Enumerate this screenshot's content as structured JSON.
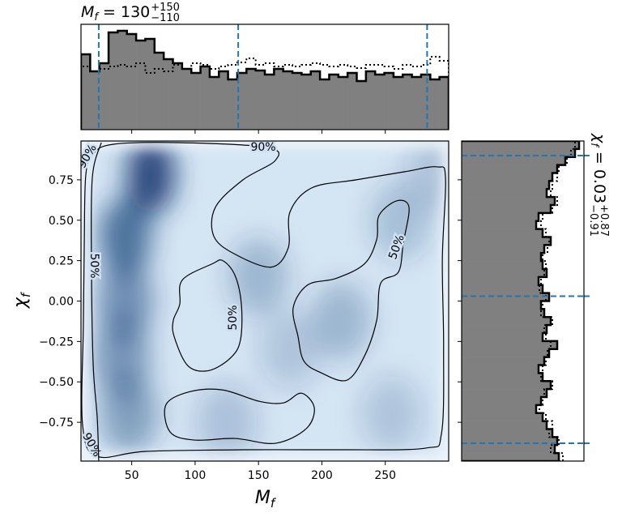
{
  "chart_data": [
    {
      "type": "histogram",
      "title": {
        "var": "M",
        "sub": "f",
        "eq": " = 130",
        "sup": "+150",
        "low": "−110"
      },
      "bins": [
        10,
        17.25,
        24.5,
        31.75,
        39,
        46.25,
        53.5,
        60.75,
        68,
        75.25,
        82.5,
        89.75,
        97,
        104.25,
        111.5,
        118.75,
        126,
        133.25,
        140.5,
        147.75,
        155,
        162.25,
        169.5,
        176.75,
        184,
        191.25,
        198.5,
        205.75,
        213,
        220.25,
        227.5,
        234.75,
        242,
        249.25,
        256.5,
        263.75,
        271,
        278.25,
        285.5,
        292.75,
        300
      ],
      "series": [
        {
          "style": "solid",
          "values": [
            93,
            72,
            82,
            120,
            122,
            118,
            110,
            112,
            95,
            87,
            82,
            75,
            70,
            78,
            65,
            72,
            62,
            70,
            75,
            73,
            68,
            75,
            72,
            70,
            68,
            72,
            62,
            68,
            65,
            70,
            60,
            72,
            68,
            70,
            65,
            68,
            65,
            68,
            62,
            65
          ]
        },
        {
          "style": "dotted",
          "values": [
            78,
            72,
            75,
            78,
            80,
            78,
            82,
            70,
            75,
            72,
            80,
            75,
            82,
            80,
            75,
            78,
            80,
            83,
            88,
            80,
            82,
            78,
            80,
            78,
            80,
            82,
            80,
            78,
            80,
            78,
            76,
            80,
            80,
            78,
            75,
            80,
            78,
            80,
            90,
            85
          ]
        }
      ],
      "color": "#808080",
      "xlim": [
        10,
        300
      ],
      "ylim": [
        0,
        130
      ],
      "xticks": [
        50,
        100,
        150,
        200,
        250
      ],
      "quantiles": [
        24,
        134,
        283
      ],
      "quantile_color": "#1f77b4"
    },
    {
      "type": "density2d",
      "xlabel": {
        "var": "M",
        "sub": "f"
      },
      "ylabel": {
        "var": "χ",
        "sub": "f"
      },
      "xlim": [
        10,
        300
      ],
      "ylim": [
        -0.99,
        0.99
      ],
      "xticks": [
        50,
        100,
        150,
        200,
        250
      ],
      "yticks": [
        {
          "value": -0.75,
          "label": "−0.75"
        },
        {
          "value": -0.5,
          "label": "−0.50"
        },
        {
          "value": -0.25,
          "label": "−0.25"
        },
        {
          "value": 0,
          "label": "0.00"
        },
        0.25,
        {
          "value": 0.5,
          "label": "0.50"
        },
        0.75
      ],
      "density": {
        "x": [
          65,
          45,
          45,
          42,
          48,
          150,
          215,
          262,
          290,
          125,
          255,
          175
        ],
        "y": [
          0.78,
          0.4,
          0.0,
          -0.35,
          -0.7,
          0.15,
          -0.12,
          0.5,
          0.8,
          -0.75,
          -0.7,
          -0.3
        ],
        "weight": [
          1,
          0.75,
          0.55,
          0.5,
          0.45,
          0.3,
          0.3,
          0.25,
          0.2,
          0.22,
          0.2,
          0.2
        ]
      },
      "colormap": [
        "#d4e5f4",
        "#08306b"
      ],
      "contours": [
        {
          "closed": true,
          "labels": [
            "90%",
            "90%",
            "90%"
          ],
          "x": [
            13.8,
            19.6,
            35.6,
            86.7,
            156.9,
            163.3,
            137.8,
            116,
            114.8,
            131.4,
            160.1,
            173.5,
            174.8,
            192,
            227.2,
            265.5,
            291,
            297.5,
            295,
            296,
            294.3,
            281.5,
            214.4,
            137.8,
            61.1,
            22.8,
            11.3,
            11.9,
            12.6
          ],
          "y": [
            0.78,
            0.91,
            0.97,
            0.98,
            0.95,
            0.87,
            0.75,
            0.58,
            0.4,
            0.29,
            0.21,
            0.33,
            0.55,
            0.7,
            0.75,
            0.8,
            0.83,
            0.76,
            0.26,
            -0.29,
            -0.82,
            -0.91,
            -0.92,
            -0.92,
            -0.93,
            -0.96,
            -0.77,
            -0.14,
            0.36
          ]
        },
        {
          "closed": false,
          "labels": [
            "50%"
          ],
          "x": [
            26,
            18.9,
            18.3,
            19.6,
            22.8,
            24
          ],
          "y": [
            0.98,
            0.76,
            0.21,
            -0.39,
            -0.72,
            -0.99
          ]
        },
        {
          "closed": true,
          "labels": [
            "50%"
          ],
          "x": [
            89.9,
            113.5,
            121.8,
            131.4,
            136.5,
            135.8,
            128.2,
            110.9,
            94.3,
            83.5,
            82.8,
            87.9
          ],
          "y": [
            0.13,
            0.23,
            0.25,
            0.16,
            -0.02,
            -0.24,
            -0.35,
            -0.43,
            -0.4,
            -0.22,
            -0.12,
            -0.02
          ]
        },
        {
          "closed": true,
          "labels": [
            "50%"
          ],
          "x": [
            245.1,
            259.1,
            268.7,
            264.2,
            260.4,
            246.4,
            243.2,
            233.6,
            219.5,
            198.4,
            185.7,
            181.2,
            177.4,
            188.9,
            211.2,
            233.6,
            243.2
          ],
          "y": [
            0.53,
            0.62,
            0.58,
            0.36,
            0.18,
            0.11,
            -0.12,
            -0.34,
            -0.49,
            -0.44,
            -0.37,
            -0.22,
            -0.04,
            0.1,
            0.14,
            0.23,
            0.38
          ]
        },
        {
          "closed": true,
          "x": [
            77.1,
            96.2,
            121.8,
            150.5,
            169.7,
            183.8,
            194,
            187.6,
            163.3,
            131.4,
            99.4,
            80.3
          ],
          "y": [
            -0.64,
            -0.56,
            -0.55,
            -0.62,
            -0.63,
            -0.57,
            -0.66,
            -0.79,
            -0.88,
            -0.85,
            -0.86,
            -0.81
          ]
        }
      ]
    },
    {
      "type": "histogram",
      "orientation": "horizontal",
      "title": {
        "var": "χ",
        "sub": "f",
        "eq": " = 0.03",
        "sup": "+0.87",
        "low": "−0.91"
      },
      "bins": [
        -0.99,
        -0.9405,
        -0.891,
        -0.8415,
        -0.792,
        -0.7425,
        -0.693,
        -0.6435,
        -0.594,
        -0.5445,
        -0.495,
        -0.4455,
        -0.396,
        -0.3465,
        -0.297,
        -0.2475,
        -0.198,
        -0.1485,
        -0.099,
        -0.0495,
        0,
        0.0495,
        0.099,
        0.1485,
        0.198,
        0.2475,
        0.297,
        0.3465,
        0.396,
        0.4455,
        0.495,
        0.5445,
        0.594,
        0.6435,
        0.693,
        0.7425,
        0.792,
        0.8415,
        0.891,
        0.9405,
        0.99
      ],
      "series": [
        {
          "style": "solid",
          "values": [
            120,
            115,
            118,
            112,
            105,
            100,
            92,
            98,
            105,
            110,
            100,
            95,
            102,
            108,
            118,
            100,
            105,
            110,
            102,
            98,
            108,
            100,
            95,
            105,
            100,
            98,
            102,
            110,
            100,
            92,
            95,
            110,
            115,
            105,
            108,
            112,
            118,
            128,
            140,
            145
          ]
        },
        {
          "style": "dotted",
          "values": [
            125,
            110,
            120,
            108,
            112,
            104,
            96,
            100,
            102,
            112,
            98,
            100,
            104,
            106,
            110,
            104,
            102,
            112,
            98,
            100,
            104,
            96,
            98,
            102,
            104,
            100,
            106,
            108,
            104,
            98,
            100,
            112,
            118,
            110,
            112,
            118,
            120,
            130,
            135,
            140
          ]
        }
      ],
      "color": "#808080",
      "xlim": [
        0,
        151
      ],
      "ylim": [
        -0.99,
        0.99
      ],
      "quantiles": [
        -0.88,
        0.03,
        0.9
      ],
      "quantile_color": "#1f77b4"
    }
  ]
}
